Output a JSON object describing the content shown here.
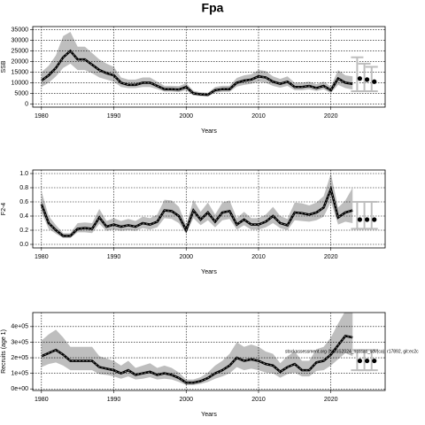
{
  "title": "Fpa",
  "chart_data": [
    {
      "type": "line",
      "ylabel": "SSB",
      "xlabel": "Years",
      "x": [
        1980,
        1981,
        1982,
        1983,
        1984,
        1985,
        1986,
        1987,
        1988,
        1989,
        1990,
        1991,
        1992,
        1993,
        1994,
        1995,
        1996,
        1997,
        1998,
        1999,
        2000,
        2001,
        2002,
        2003,
        2004,
        2005,
        2006,
        2007,
        2008,
        2009,
        2010,
        2011,
        2012,
        2013,
        2014,
        2015,
        2016,
        2017,
        2018,
        2019,
        2020,
        2021,
        2022,
        2023
      ],
      "values": [
        11000,
        13500,
        17000,
        22000,
        25000,
        21000,
        21000,
        18500,
        16000,
        14500,
        13500,
        10000,
        9000,
        9000,
        10000,
        10000,
        8500,
        7000,
        7000,
        6800,
        8000,
        5000,
        4500,
        4300,
        6500,
        7000,
        7000,
        10000,
        11000,
        11500,
        13000,
        12500,
        10500,
        9500,
        10500,
        8000,
        8000,
        8500,
        7500,
        8500,
        6500,
        12000,
        10000,
        9500
      ],
      "lower": [
        8000,
        10000,
        13000,
        17000,
        19000,
        16000,
        16000,
        14500,
        12500,
        11500,
        10500,
        8000,
        7500,
        7500,
        8000,
        8000,
        7000,
        5800,
        5800,
        5600,
        6500,
        4000,
        3700,
        3500,
        5300,
        5700,
        5700,
        8200,
        9000,
        9500,
        10500,
        10000,
        8500,
        7700,
        8500,
        6500,
        6500,
        6900,
        6100,
        6900,
        5200,
        9000,
        7500,
        6800
      ],
      "upper": [
        15000,
        18000,
        23000,
        32000,
        34000,
        27000,
        27000,
        24000,
        21000,
        19000,
        17500,
        12500,
        11500,
        11500,
        12500,
        12500,
        10500,
        8600,
        8600,
        8400,
        9800,
        6200,
        5500,
        5300,
        8000,
        8600,
        8600,
        12300,
        13500,
        14000,
        16000,
        15500,
        13000,
        11800,
        13000,
        10000,
        10000,
        10500,
        9300,
        10500,
        8200,
        16000,
        13500,
        13000
      ],
      "forecast": {
        "x": [
          2024,
          2025,
          2026
        ],
        "values": [
          12000,
          11500,
          10500
        ],
        "lower": [
          6000,
          6000,
          6000
        ],
        "upper": [
          22000,
          19000,
          17500
        ]
      },
      "color": "#000000",
      "band_color": "#bebebe",
      "xlim": [
        1978.8,
        2027.5
      ],
      "ylim": [
        -1500,
        36500
      ],
      "xticks": [
        1980,
        1990,
        2000,
        2010,
        2020
      ],
      "yticks": [
        0,
        5000,
        10000,
        15000,
        20000,
        25000,
        30000,
        35000
      ],
      "grid": true
    },
    {
      "type": "line",
      "ylabel": "F2-4",
      "xlabel": "Years",
      "x": [
        1980,
        1981,
        1982,
        1983,
        1984,
        1985,
        1986,
        1987,
        1988,
        1989,
        1990,
        1991,
        1992,
        1993,
        1994,
        1995,
        1996,
        1997,
        1998,
        1999,
        2000,
        2001,
        2002,
        2003,
        2004,
        2005,
        2006,
        2007,
        2008,
        2009,
        2010,
        2011,
        2012,
        2013,
        2014,
        2015,
        2016,
        2017,
        2018,
        2019,
        2020,
        2021,
        2022,
        2023
      ],
      "values": [
        0.57,
        0.3,
        0.2,
        0.12,
        0.12,
        0.22,
        0.23,
        0.22,
        0.38,
        0.25,
        0.28,
        0.25,
        0.27,
        0.25,
        0.3,
        0.28,
        0.32,
        0.48,
        0.47,
        0.4,
        0.2,
        0.48,
        0.35,
        0.45,
        0.32,
        0.45,
        0.47,
        0.28,
        0.35,
        0.28,
        0.28,
        0.32,
        0.4,
        0.3,
        0.27,
        0.45,
        0.44,
        0.42,
        0.45,
        0.52,
        0.78,
        0.38,
        0.45,
        0.48
      ],
      "lower": [
        0.45,
        0.22,
        0.15,
        0.09,
        0.09,
        0.17,
        0.17,
        0.16,
        0.29,
        0.19,
        0.21,
        0.19,
        0.2,
        0.19,
        0.23,
        0.21,
        0.24,
        0.37,
        0.36,
        0.3,
        0.15,
        0.37,
        0.27,
        0.34,
        0.24,
        0.34,
        0.36,
        0.21,
        0.27,
        0.21,
        0.21,
        0.24,
        0.3,
        0.23,
        0.2,
        0.34,
        0.33,
        0.32,
        0.34,
        0.39,
        0.6,
        0.28,
        0.32,
        0.3
      ],
      "upper": [
        0.75,
        0.4,
        0.27,
        0.16,
        0.16,
        0.3,
        0.31,
        0.3,
        0.5,
        0.33,
        0.37,
        0.33,
        0.36,
        0.33,
        0.39,
        0.37,
        0.42,
        0.63,
        0.62,
        0.53,
        0.27,
        0.63,
        0.46,
        0.59,
        0.42,
        0.59,
        0.62,
        0.37,
        0.46,
        0.37,
        0.37,
        0.42,
        0.53,
        0.4,
        0.36,
        0.59,
        0.58,
        0.55,
        0.59,
        0.68,
        1.0,
        0.52,
        0.62,
        0.8
      ],
      "forecast": {
        "x": [
          2024,
          2025,
          2026
        ],
        "values": [
          0.35,
          0.35,
          0.35
        ],
        "lower": [
          0.22,
          0.22,
          0.22
        ],
        "upper": [
          0.6,
          0.6,
          0.6
        ]
      },
      "color": "#000000",
      "band_color": "#bebebe",
      "xlim": [
        1978.8,
        2027.5
      ],
      "ylim": [
        -0.05,
        1.05
      ],
      "xticks": [
        1980,
        1990,
        2000,
        2010,
        2020
      ],
      "yticks": [
        {
          "value": 0,
          "label": "0.0"
        },
        0.2,
        0.4,
        0.6,
        0.8,
        {
          "value": 1,
          "label": "1.0"
        }
      ],
      "grid": true
    },
    {
      "type": "line",
      "ylabel": "Recruits (age 1)",
      "xlabel": "Years",
      "annotation": "stockassessment.org (NSSS2024_nsssas_sdv(ca), r17892, git:ec2c",
      "x": [
        1980,
        1981,
        1982,
        1983,
        1984,
        1985,
        1986,
        1987,
        1988,
        1989,
        1990,
        1991,
        1992,
        1993,
        1994,
        1995,
        1996,
        1997,
        1998,
        1999,
        2000,
        2001,
        2002,
        2003,
        2004,
        2005,
        2006,
        2007,
        2008,
        2009,
        2010,
        2011,
        2012,
        2013,
        2014,
        2015,
        2016,
        2017,
        2018,
        2019,
        2020,
        2021,
        2022,
        2023
      ],
      "values": [
        210000,
        230000,
        250000,
        220000,
        180000,
        180000,
        180000,
        180000,
        140000,
        130000,
        120000,
        100000,
        120000,
        90000,
        100000,
        110000,
        90000,
        100000,
        90000,
        70000,
        40000,
        40000,
        50000,
        70000,
        100000,
        120000,
        150000,
        200000,
        180000,
        190000,
        180000,
        160000,
        150000,
        110000,
        140000,
        160000,
        120000,
        120000,
        170000,
        180000,
        220000,
        280000,
        340000,
        330000
      ],
      "lower": [
        140000,
        160000,
        170000,
        150000,
        120000,
        120000,
        120000,
        120000,
        95000,
        90000,
        80000,
        65000,
        80000,
        60000,
        65000,
        75000,
        60000,
        65000,
        60000,
        45000,
        25000,
        25000,
        32000,
        45000,
        65000,
        80000,
        100000,
        140000,
        120000,
        130000,
        120000,
        105000,
        100000,
        72000,
        95000,
        105000,
        80000,
        80000,
        115000,
        120000,
        150000,
        190000,
        230000,
        210000
      ],
      "upper": [
        310000,
        350000,
        380000,
        330000,
        270000,
        270000,
        270000,
        270000,
        210000,
        195000,
        180000,
        150000,
        180000,
        135000,
        150000,
        165000,
        135000,
        150000,
        135000,
        105000,
        60000,
        60000,
        75000,
        105000,
        150000,
        180000,
        225000,
        300000,
        270000,
        285000,
        270000,
        240000,
        225000,
        165000,
        210000,
        240000,
        180000,
        180000,
        255000,
        270000,
        330000,
        420000,
        500000,
        490000
      ],
      "forecast": {
        "x": [
          2024,
          2025,
          2026
        ],
        "values": [
          180000,
          180000,
          180000
        ],
        "lower": [
          120000,
          120000,
          120000
        ],
        "upper": [
          250000,
          250000,
          250000
        ]
      },
      "color": "#000000",
      "band_color": "#bebebe",
      "xlim": [
        1978.8,
        2027.5
      ],
      "ylim": [
        -10000,
        490000
      ],
      "xticks": [
        1980,
        1990,
        2000,
        2010,
        2020
      ],
      "yticks": [
        {
          "value": 0,
          "label": "0e+00"
        },
        {
          "value": 100000,
          "label": "1e+05"
        },
        {
          "value": 200000,
          "label": "2e+05"
        },
        {
          "value": 300000,
          "label": "3e+05"
        },
        {
          "value": 400000,
          "label": "4e+05"
        }
      ],
      "grid": true
    }
  ]
}
